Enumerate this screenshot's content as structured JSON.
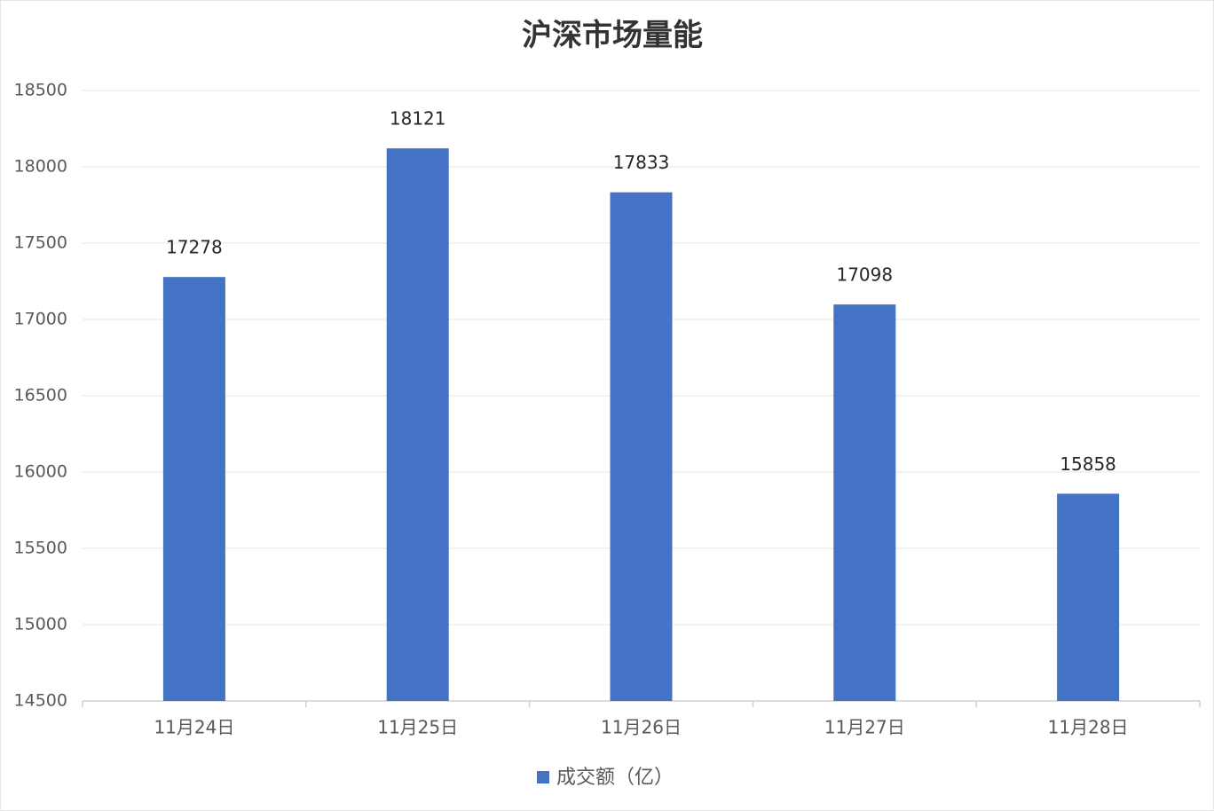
{
  "chart_data": {
    "type": "bar",
    "title": "沪深市场量能",
    "categories": [
      "11月24日",
      "11月25日",
      "11月26日",
      "11月27日",
      "11月28日"
    ],
    "series": [
      {
        "name": "成交额（亿）",
        "color": "#4472c4",
        "values": [
          17278,
          18121,
          17833,
          17098,
          15858
        ]
      }
    ],
    "ylim": [
      14500,
      18500
    ],
    "yticks": [
      14500,
      15000,
      15500,
      16000,
      16500,
      17000,
      17500,
      18000,
      18500
    ],
    "grid": true,
    "legend": "bottom"
  }
}
